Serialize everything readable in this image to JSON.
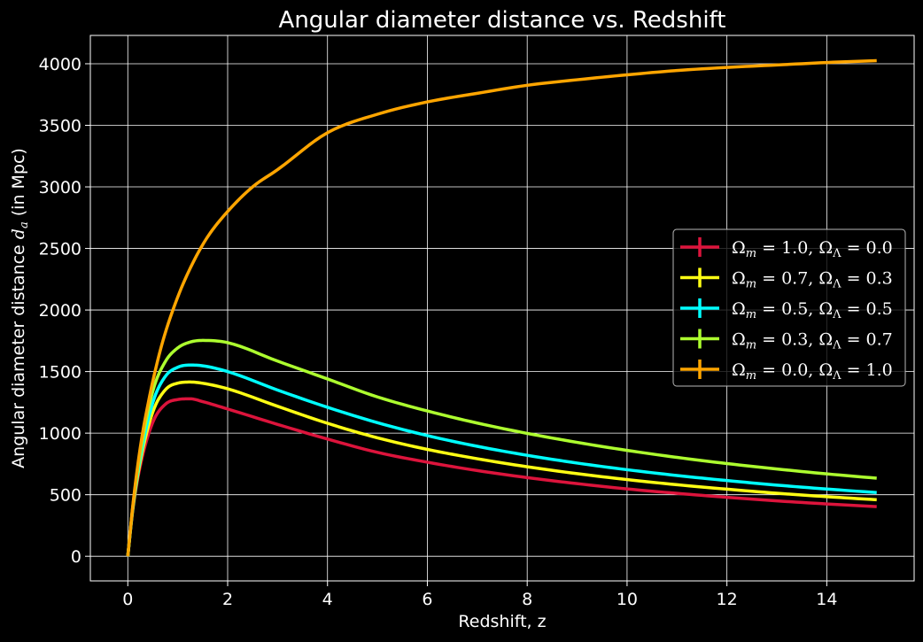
{
  "chart_data": {
    "type": "line",
    "title": "Angular diameter distance vs. Redshift",
    "xlabel": "Redshift, z",
    "ylabel_prefix": "Angular diameter distance ",
    "ylabel_symbol": "d",
    "ylabel_subscript": "a",
    "ylabel_suffix": " (in Mpc)",
    "xlim": [
      -0.75,
      15.75
    ],
    "ylim": [
      -200,
      4230
    ],
    "xticks": [
      0,
      2,
      4,
      6,
      8,
      10,
      12,
      14
    ],
    "yticks": [
      0,
      500,
      1000,
      1500,
      2000,
      2500,
      3000,
      3500,
      4000
    ],
    "grid": true,
    "legend_position": "center-right",
    "background": "#000000",
    "foreground": "#ffffff",
    "series": [
      {
        "name": "Ωm = 1.0, ΩΛ = 0.0",
        "om": "1.0",
        "ol": "0.0",
        "color": "#dc143c",
        "x": [
          0,
          0.1,
          0.25,
          0.5,
          0.75,
          1,
          1.25,
          1.5,
          2,
          3,
          4,
          5,
          6,
          7,
          8,
          9,
          10,
          11,
          12,
          13,
          14,
          15
        ],
        "y": [
          0,
          373,
          734,
          1087,
          1234,
          1273,
          1279,
          1256,
          1196,
          1071,
          952,
          844,
          764,
          696,
          639,
          590,
          547,
          511,
          479,
          450,
          425,
          403
        ]
      },
      {
        "name": "Ωm = 0.7, ΩΛ = 0.3",
        "om": "0.7",
        "ol": "0.3",
        "color": "#ffff14",
        "x": [
          0,
          0.1,
          0.25,
          0.5,
          0.75,
          1,
          1.25,
          1.5,
          2,
          3,
          4,
          5,
          6,
          7,
          8,
          9,
          10,
          11,
          12,
          13,
          14,
          15
        ],
        "y": [
          0,
          383,
          768,
          1170,
          1351,
          1406,
          1415,
          1405,
          1360,
          1218,
          1080,
          962,
          868,
          792,
          727,
          671,
          623,
          581,
          545,
          512,
          484,
          459
        ]
      },
      {
        "name": "Ωm = 0.5, ΩΛ = 0.5",
        "om": "0.5",
        "ol": "0.5",
        "color": "#00ffff",
        "x": [
          0,
          0.1,
          0.25,
          0.5,
          0.75,
          1,
          1.25,
          1.5,
          2,
          3,
          4,
          5,
          6,
          7,
          8,
          9,
          10,
          11,
          12,
          13,
          14,
          15
        ],
        "y": [
          0,
          390,
          800,
          1247,
          1460,
          1535,
          1553,
          1547,
          1500,
          1350,
          1210,
          1085,
          980,
          893,
          820,
          757,
          703,
          656,
          615,
          578,
          546,
          517
        ]
      },
      {
        "name": "Ωm = 0.3, ΩΛ = 0.7",
        "om": "0.3",
        "ol": "0.7",
        "color": "#adff2f",
        "x": [
          0,
          0.1,
          0.25,
          0.5,
          0.75,
          1,
          1.25,
          1.5,
          2,
          3,
          4,
          5,
          6,
          7,
          8,
          9,
          10,
          11,
          12,
          13,
          14,
          15
        ],
        "y": [
          0,
          400,
          840,
          1340,
          1580,
          1692,
          1740,
          1753,
          1735,
          1585,
          1440,
          1294,
          1180,
          1082,
          998,
          925,
          860,
          803,
          753,
          709,
          669,
          634
        ]
      },
      {
        "name": "Ωm = 0.0, ΩΛ = 1.0",
        "om": "0.0",
        "ol": "1.0",
        "color": "#ffa500",
        "x": [
          0,
          0.05,
          0.1,
          0.2,
          0.3,
          0.4,
          0.5,
          0.7,
          1,
          1.3,
          1.6,
          2,
          2.5,
          3,
          4,
          5,
          6,
          7,
          8,
          9,
          10,
          11,
          12,
          13,
          14,
          15
        ],
        "y": [
          0,
          210,
          410,
          740,
          1010,
          1225,
          1420,
          1745,
          2105,
          2380,
          2595,
          2800,
          3000,
          3140,
          3440,
          3590,
          3690,
          3760,
          3825,
          3870,
          3910,
          3945,
          3970,
          3990,
          4010,
          4025
        ]
      }
    ]
  }
}
